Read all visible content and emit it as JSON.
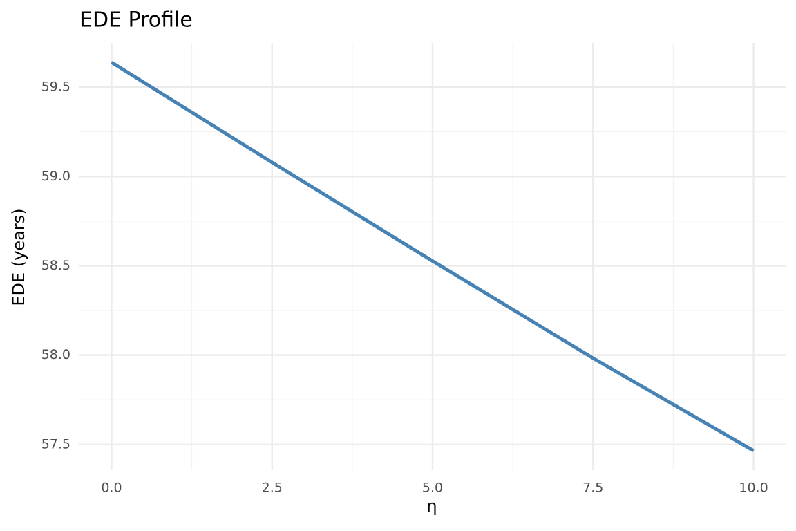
{
  "chart_data": {
    "type": "line",
    "title": "EDE Profile",
    "x_label": "η",
    "y_label": "EDE (years)",
    "x": [
      0,
      2.5,
      5,
      7.5,
      10
    ],
    "values": [
      59.639,
      59.079,
      58.527,
      57.983,
      57.465
    ],
    "color": "#4682b4",
    "xlim": [
      -0.5,
      10.5
    ],
    "ylim": [
      57.356,
      59.748
    ],
    "xticks": [
      {
        "value": 0,
        "label": "0.0"
      },
      2.5,
      {
        "value": 5,
        "label": "5.0"
      },
      7.5,
      {
        "value": 10,
        "label": "10.0"
      }
    ],
    "yticks": [
      57.5,
      {
        "value": 58,
        "label": "58.0"
      },
      58.5,
      {
        "value": 59,
        "label": "59.0"
      },
      59.5
    ],
    "x_minor_ticks": [
      1.25,
      3.75,
      6.25,
      8.75
    ],
    "y_minor_ticks": [
      57.75,
      58.25,
      58.75,
      59.25
    ],
    "grid": true
  }
}
